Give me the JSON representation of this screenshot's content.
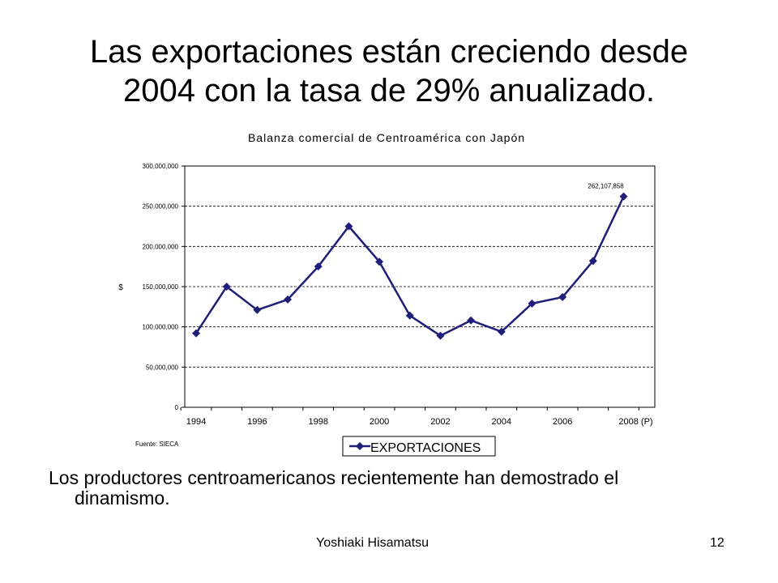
{
  "slide": {
    "title_line1": "Las exportaciones están creciendo desde",
    "title_line2": "2004 con la tasa de 29% anualizado.",
    "body_line1": "Los productores centroamericanos recientemente han demostrado el",
    "body_line2": "dinamismo.",
    "author": "Yoshiaki Hisamatsu",
    "page_number": "12"
  },
  "chart_data": {
    "type": "line",
    "title": "Balanza comercial de Centroamérica con Japón",
    "ylabel": "$",
    "source": "Fuente: SIECA",
    "x": [
      1994,
      1995,
      1996,
      1997,
      1998,
      1999,
      2000,
      2001,
      2002,
      2003,
      2004,
      2005,
      2006,
      2007,
      2008
    ],
    "x_tick_labels": [
      "1994",
      "1996",
      "1998",
      "2000",
      "2002",
      "2004",
      "2006",
      "2008 (P)"
    ],
    "y_tick_labels": [
      "0",
      "50,000,000",
      "100,000,000",
      "150,000,000",
      "200,000,000",
      "250,000,000",
      "300,000,000"
    ],
    "ylim": [
      0,
      300000000
    ],
    "grid": "horizontal-dashed",
    "legend_position": "bottom",
    "series": [
      {
        "name": "EXPORTACIONES",
        "color": "#1f1f7a",
        "values": [
          92000000,
          150000000,
          121000000,
          134000000,
          175000000,
          225000000,
          181000000,
          114000000,
          89000000,
          108000000,
          94000000,
          129000000,
          137000000,
          182000000,
          262107858
        ]
      }
    ],
    "annotations": [
      "262,107,858"
    ]
  }
}
